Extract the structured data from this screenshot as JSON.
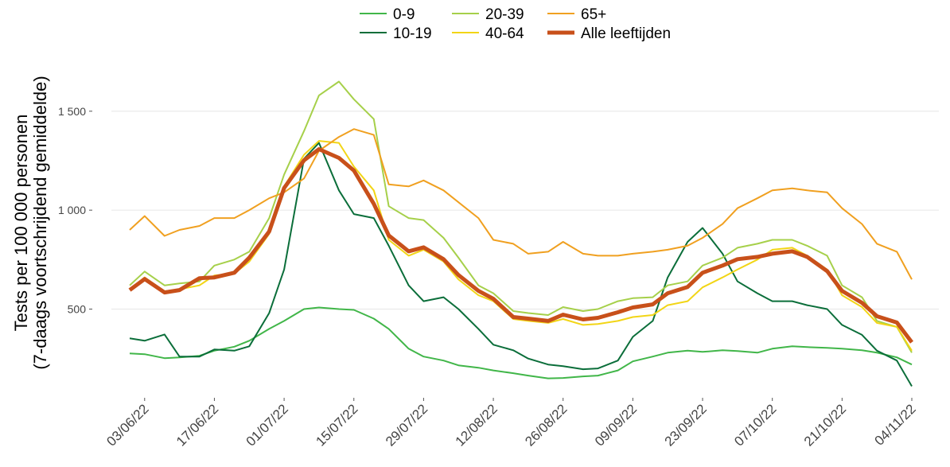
{
  "chart_data": {
    "type": "line",
    "ylabel": [
      "Tests per 100 000 personen",
      "(7-daags voortschrijdend gemiddelde)"
    ],
    "x": [
      "31/05/22",
      "03/06/22",
      "07/06/22",
      "10/06/22",
      "14/06/22",
      "17/06/22",
      "21/06/22",
      "24/06/22",
      "28/06/22",
      "01/07/22",
      "05/07/22",
      "08/07/22",
      "12/07/22",
      "15/07/22",
      "19/07/22",
      "22/07/22",
      "26/07/22",
      "29/07/22",
      "02/08/22",
      "05/08/22",
      "09/08/22",
      "12/08/22",
      "16/08/22",
      "19/08/22",
      "23/08/22",
      "26/08/22",
      "30/08/22",
      "02/09/22",
      "06/09/22",
      "09/09/22",
      "13/09/22",
      "16/09/22",
      "20/09/22",
      "23/09/22",
      "27/09/22",
      "30/09/22",
      "04/10/22",
      "07/10/22",
      "11/10/22",
      "14/10/22",
      "18/10/22",
      "21/10/22",
      "25/10/22",
      "28/10/22",
      "01/11/22",
      "04/11/22"
    ],
    "xticks": [
      "03/06/22",
      "17/06/22",
      "01/07/22",
      "15/07/22",
      "29/07/22",
      "12/08/22",
      "26/08/22",
      "09/09/22",
      "23/09/22",
      "07/10/22",
      "21/10/22",
      "04/11/22"
    ],
    "ylim": [
      80,
      1680
    ],
    "yticks": [
      {
        "value": 500,
        "label": "500"
      },
      {
        "value": 1000,
        "label": "1 000"
      },
      {
        "value": 1500,
        "label": "1 500"
      }
    ],
    "grid": true,
    "legend": "top",
    "series": [
      {
        "name": "0-9",
        "color": "#41b649",
        "linewidth": 2,
        "values": [
          276,
          272,
          252,
          256,
          264,
          290,
          310,
          340,
          400,
          440,
          500,
          508,
          500,
          496,
          452,
          400,
          300,
          260,
          240,
          216,
          204,
          190,
          176,
          164,
          150,
          152,
          160,
          164,
          190,
          236,
          260,
          280,
          290,
          284,
          292,
          288,
          280,
          300,
          312,
          308,
          304,
          300,
          292,
          280,
          256,
          220
        ]
      },
      {
        "name": "10-19",
        "color": "#0b6e3a",
        "linewidth": 2,
        "values": [
          352,
          340,
          372,
          260,
          260,
          296,
          290,
          312,
          480,
          700,
          1260,
          1340,
          1100,
          980,
          960,
          820,
          620,
          540,
          560,
          500,
          400,
          320,
          292,
          250,
          220,
          212,
          196,
          200,
          240,
          360,
          440,
          660,
          840,
          910,
          780,
          640,
          580,
          540,
          540,
          520,
          500,
          420,
          370,
          290,
          240,
          110
        ]
      },
      {
        "name": "20-39",
        "color": "#a6d04a",
        "linewidth": 2,
        "values": [
          620,
          690,
          620,
          630,
          640,
          720,
          750,
          790,
          960,
          1180,
          1400,
          1580,
          1650,
          1560,
          1460,
          1020,
          960,
          950,
          860,
          760,
          620,
          580,
          490,
          480,
          470,
          510,
          490,
          500,
          540,
          555,
          560,
          620,
          640,
          720,
          760,
          810,
          830,
          850,
          850,
          820,
          770,
          620,
          560,
          440,
          410,
          280
        ]
      },
      {
        "name": "40-64",
        "color": "#f2d516",
        "linewidth": 2,
        "values": [
          600,
          660,
          590,
          600,
          620,
          670,
          680,
          740,
          880,
          1120,
          1280,
          1350,
          1340,
          1220,
          1100,
          850,
          770,
          800,
          740,
          650,
          570,
          540,
          450,
          440,
          430,
          450,
          420,
          425,
          440,
          460,
          470,
          520,
          540,
          610,
          660,
          700,
          750,
          800,
          810,
          770,
          700,
          570,
          510,
          430,
          410,
          290
        ]
      },
      {
        "name": "65+",
        "color": "#f0a020",
        "linewidth": 2,
        "values": [
          900,
          970,
          870,
          900,
          920,
          960,
          960,
          1000,
          1060,
          1090,
          1160,
          1300,
          1370,
          1410,
          1380,
          1130,
          1120,
          1150,
          1100,
          1040,
          960,
          850,
          830,
          780,
          790,
          840,
          780,
          770,
          770,
          780,
          790,
          800,
          820,
          860,
          930,
          1010,
          1060,
          1100,
          1110,
          1100,
          1090,
          1010,
          930,
          830,
          790,
          650
        ]
      },
      {
        "name": "Alle leeftijden",
        "color": "#c8501a",
        "linewidth": 5,
        "values": [
          596,
          652,
          584,
          596,
          656,
          660,
          684,
          760,
          892,
          1112,
          1252,
          1308,
          1264,
          1200,
          1032,
          872,
          792,
          812,
          752,
          672,
          592,
          552,
          460,
          452,
          440,
          472,
          448,
          456,
          484,
          508,
          524,
          580,
          612,
          684,
          720,
          752,
          764,
          780,
          792,
          764,
          692,
          592,
          532,
          464,
          432,
          332
        ]
      }
    ]
  }
}
